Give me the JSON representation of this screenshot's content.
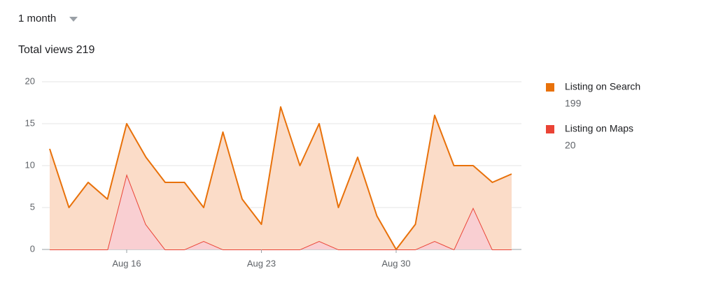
{
  "period": "1 month",
  "chart_data": {
    "type": "stacked-area",
    "title": "Total views 219",
    "categories": [
      null,
      null,
      null,
      null,
      "Aug 16",
      null,
      null,
      null,
      null,
      null,
      null,
      "Aug 23",
      null,
      null,
      null,
      null,
      null,
      null,
      "Aug 30",
      null,
      null,
      null,
      null,
      null,
      null
    ],
    "series": [
      {
        "name": "Listing on Search",
        "total": 199,
        "color": "#e8710a",
        "fill": "#fbdcc8",
        "values": [
          12,
          5,
          8,
          6,
          6,
          8,
          8,
          8,
          4,
          14,
          6,
          3,
          17,
          10,
          14,
          5,
          11,
          4,
          0,
          3,
          15,
          10,
          5,
          8,
          9
        ]
      },
      {
        "name": "Listing on Maps",
        "total": 20,
        "color": "#ea4335",
        "fill": "#f9cfd2",
        "values": [
          0,
          0,
          0,
          0,
          9,
          3,
          0,
          0,
          1,
          0,
          0,
          0,
          0,
          0,
          1,
          0,
          0,
          0,
          0,
          0,
          1,
          0,
          5,
          0,
          0
        ]
      }
    ],
    "ylim": [
      0,
      20
    ],
    "yticks": [
      0,
      5,
      10,
      15,
      20
    ],
    "grid": true,
    "legend": "right"
  }
}
